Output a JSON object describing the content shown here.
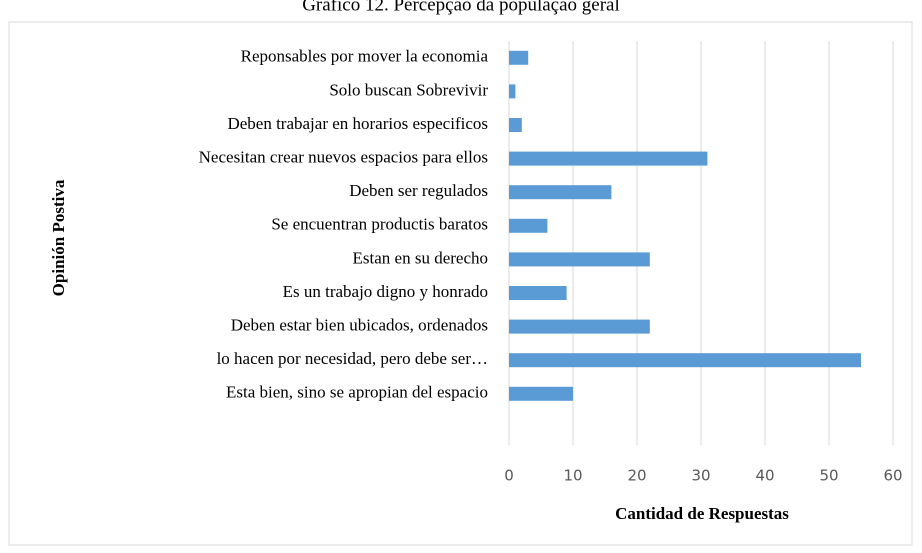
{
  "chart_data": {
    "type": "barh",
    "title": "Gráfico 12. Percepção da população geral",
    "xlabel": "Cantidad de Respuestas",
    "ylabel": "Opinión Postiva",
    "categories": [
      "Reponsables por mover la economia",
      "Solo buscan Sobrevivir",
      "Deben trabajar en horarios especificos",
      "Necesitan crear nuevos espacios para ellos",
      "Deben ser regulados",
      "Se encuentran productis baratos",
      "Estan en su derecho",
      "Es un trabajo digno y honrado",
      "Deben estar bien  ubicados, ordenados",
      "lo hacen por necesidad, pero debe ser…",
      "Esta bien, sino se apropian del espacio"
    ],
    "values": [
      3,
      1,
      2,
      31,
      16,
      6,
      22,
      9,
      22,
      55,
      10
    ],
    "color": "#5b9bd5",
    "xlim": [
      0,
      60
    ],
    "xticks": [
      0,
      10,
      20,
      30,
      40,
      50,
      60
    ],
    "grid": true
  }
}
